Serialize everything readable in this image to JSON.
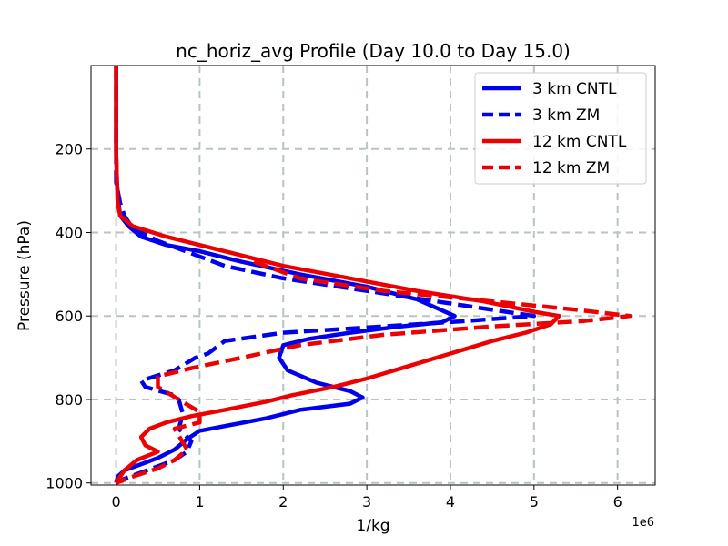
{
  "chart_data": {
    "type": "line",
    "title": "nc_horiz_avg Profile (Day 10.0 to Day 15.0)",
    "xlabel": "1/kg",
    "ylabel": "Pressure (hPa)",
    "x_offset_label": "1e6",
    "xlim": [
      -0.3,
      6.45
    ],
    "ylim": [
      1005,
      0
    ],
    "xticks": [
      0,
      1,
      2,
      3,
      4,
      5,
      6
    ],
    "xtick_labels": [
      "0",
      "1",
      "2",
      "3",
      "4",
      "5",
      "6"
    ],
    "yticks": [
      200,
      400,
      600,
      800,
      1000
    ],
    "ytick_labels": [
      "200",
      "400",
      "600",
      "800",
      "1000"
    ],
    "grid": true,
    "legend_location": "top-right",
    "series": [
      {
        "name": "3 km CNTL",
        "color": "#0000ee",
        "style": "solid",
        "x": [
          0,
          0,
          0,
          0.01,
          0.03,
          0.05,
          0.15,
          0.3,
          0.6,
          1.0,
          1.5,
          2.2,
          3.0,
          3.6,
          4.05,
          3.9,
          3.4,
          2.8,
          2.3,
          2.0,
          1.95,
          2.05,
          2.4,
          2.8,
          2.95,
          2.8,
          2.2,
          1.8,
          1.4,
          1.0,
          0.85,
          0.7,
          0.5,
          0.3,
          0.1,
          0.02,
          0
        ],
        "y": [
          0,
          100,
          200,
          280,
          330,
          360,
          385,
          410,
          430,
          445,
          470,
          500,
          530,
          560,
          600,
          615,
          625,
          640,
          655,
          670,
          700,
          730,
          760,
          780,
          795,
          810,
          825,
          845,
          860,
          875,
          895,
          920,
          940,
          955,
          970,
          985,
          1000
        ]
      },
      {
        "name": "3 km ZM",
        "color": "#0000ee",
        "style": "dashed",
        "x": [
          0,
          0,
          0,
          0,
          0.05,
          0.1,
          0.2,
          0.5,
          0.9,
          1.3,
          2.0,
          3.0,
          4.0,
          5.0,
          4.2,
          3.2,
          2.0,
          1.3,
          1.1,
          0.95,
          0.7,
          0.3,
          0.35,
          0.7,
          0.75,
          0.8,
          0.75,
          0.9,
          0.85,
          0.7,
          0.5,
          0.3,
          0.1,
          0
        ],
        "y": [
          0,
          100,
          200,
          280,
          330,
          360,
          390,
          420,
          450,
          480,
          510,
          540,
          570,
          600,
          612,
          625,
          640,
          660,
          690,
          700,
          730,
          755,
          770,
          790,
          800,
          835,
          870,
          900,
          925,
          945,
          960,
          975,
          990,
          1000
        ]
      },
      {
        "name": "12 km CNTL",
        "color": "#ee0000",
        "style": "solid",
        "x": [
          0,
          0,
          0,
          0.01,
          0.02,
          0.05,
          0.2,
          0.6,
          1.2,
          2.0,
          2.8,
          3.6,
          4.4,
          5.0,
          5.3,
          5.2,
          4.9,
          4.5,
          4.0,
          3.5,
          3.0,
          2.6,
          2.1,
          1.8,
          1.3,
          0.9,
          0.6,
          0.4,
          0.3,
          0.35,
          0.5,
          0.25,
          0.1,
          0
        ],
        "y": [
          0,
          100,
          200,
          280,
          330,
          360,
          385,
          410,
          440,
          480,
          510,
          540,
          565,
          590,
          600,
          620,
          640,
          660,
          690,
          720,
          750,
          770,
          790,
          805,
          825,
          840,
          855,
          870,
          890,
          910,
          925,
          945,
          970,
          1000
        ]
      },
      {
        "name": "12 km ZM",
        "color": "#ee0000",
        "style": "dashed",
        "x": [
          1.65,
          2.2,
          3.2,
          4.5,
          5.5,
          6.15,
          5.6,
          4.5,
          3.2,
          2.2,
          1.5,
          0.9,
          0.5,
          0.5,
          0.75,
          1.0,
          1.0,
          0.7,
          0.85,
          0.7,
          0.5,
          0.2,
          0
        ],
        "y": [
          470,
          510,
          540,
          565,
          585,
          600,
          612,
          625,
          645,
          670,
          700,
          725,
          745,
          770,
          800,
          830,
          855,
          870,
          920,
          945,
          965,
          985,
          1000
        ]
      }
    ]
  }
}
